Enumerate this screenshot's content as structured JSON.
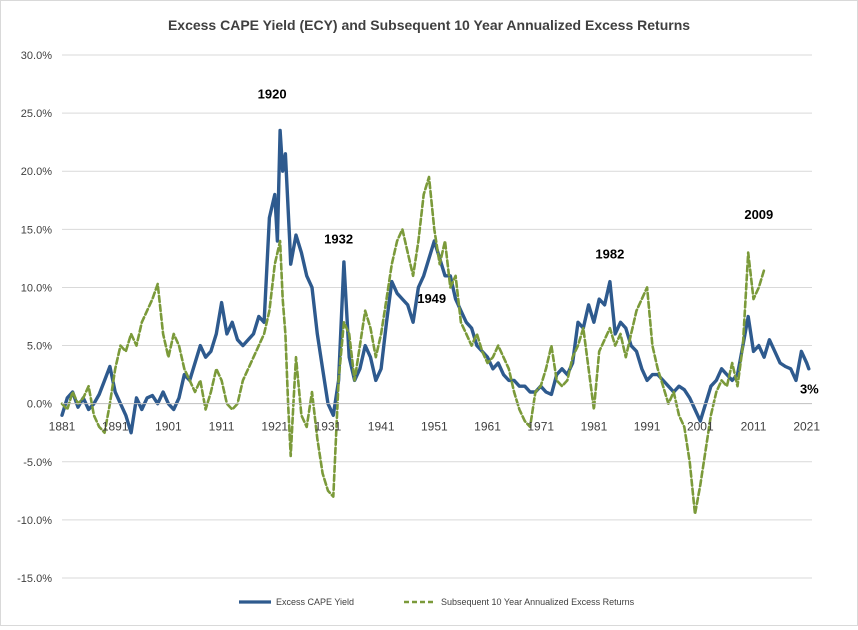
{
  "chart_data": {
    "type": "line",
    "title": "Excess CAPE Yield (ECY) and Subsequent 10 Year Annualized Excess Returns",
    "xlabel": "",
    "ylabel": "",
    "xlim": [
      1881,
      2022
    ],
    "ylim": [
      -15,
      30
    ],
    "x_ticks": [
      "1881",
      "1891",
      "1901",
      "1911",
      "1921",
      "1931",
      "1941",
      "1951",
      "1961",
      "1971",
      "1981",
      "1991",
      "2001",
      "2011",
      "2021"
    ],
    "y_ticks": [
      "30.0%",
      "25.0%",
      "20.0%",
      "15.0%",
      "10.0%",
      "5.0%",
      "0.0%",
      "-5.0%",
      "-10.0%",
      "-15.0%"
    ],
    "grid": "horizontal",
    "legend": "bottom",
    "series": [
      {
        "name": "Excess CAPE Yield",
        "color": "#2e5a8e",
        "style": "solid",
        "points": [
          [
            1881,
            -1
          ],
          [
            1882,
            0.5
          ],
          [
            1883,
            1
          ],
          [
            1884,
            -0.3
          ],
          [
            1885,
            0.5
          ],
          [
            1886,
            -0.5
          ],
          [
            1887,
            0
          ],
          [
            1888,
            0.8
          ],
          [
            1889,
            2
          ],
          [
            1890,
            3.2
          ],
          [
            1891,
            1
          ],
          [
            1892,
            0
          ],
          [
            1893,
            -1
          ],
          [
            1894,
            -2.5
          ],
          [
            1895,
            0.5
          ],
          [
            1896,
            -0.5
          ],
          [
            1897,
            0.5
          ],
          [
            1898,
            0.7
          ],
          [
            1899,
            0
          ],
          [
            1900,
            1
          ],
          [
            1901,
            0
          ],
          [
            1902,
            -0.5
          ],
          [
            1903,
            0.5
          ],
          [
            1904,
            2.5
          ],
          [
            1905,
            2
          ],
          [
            1906,
            3.5
          ],
          [
            1907,
            5
          ],
          [
            1908,
            4
          ],
          [
            1909,
            4.5
          ],
          [
            1910,
            6
          ],
          [
            1911,
            8.7
          ],
          [
            1912,
            6
          ],
          [
            1913,
            7
          ],
          [
            1914,
            5.5
          ],
          [
            1915,
            5
          ],
          [
            1916,
            5.5
          ],
          [
            1917,
            6
          ],
          [
            1918,
            7.5
          ],
          [
            1919,
            7
          ],
          [
            1920,
            16
          ],
          [
            1921,
            18
          ],
          [
            1921.5,
            14
          ],
          [
            1922,
            23.5
          ],
          [
            1922.5,
            20
          ],
          [
            1923,
            21.5
          ],
          [
            1923.8,
            14
          ],
          [
            1924,
            12
          ],
          [
            1925,
            14.5
          ],
          [
            1926,
            13
          ],
          [
            1927,
            11
          ],
          [
            1928,
            10
          ],
          [
            1929,
            6
          ],
          [
            1930,
            3
          ],
          [
            1931,
            0
          ],
          [
            1932,
            -1
          ],
          [
            1933,
            2
          ],
          [
            1934,
            12.2
          ],
          [
            1934.5,
            8
          ],
          [
            1935,
            4
          ],
          [
            1936,
            2
          ],
          [
            1937,
            3
          ],
          [
            1938,
            5
          ],
          [
            1939,
            4
          ],
          [
            1940,
            2
          ],
          [
            1941,
            3
          ],
          [
            1942,
            7
          ],
          [
            1943,
            10.5
          ],
          [
            1944,
            9.5
          ],
          [
            1945,
            9
          ],
          [
            1946,
            8.5
          ],
          [
            1947,
            7
          ],
          [
            1948,
            10
          ],
          [
            1949,
            11
          ],
          [
            1950,
            12.5
          ],
          [
            1951,
            14
          ],
          [
            1952,
            12.5
          ],
          [
            1953,
            11
          ],
          [
            1954,
            11
          ],
          [
            1955,
            9
          ],
          [
            1956,
            8
          ],
          [
            1957,
            7
          ],
          [
            1958,
            6.5
          ],
          [
            1959,
            5
          ],
          [
            1960,
            4.5
          ],
          [
            1961,
            4
          ],
          [
            1962,
            3
          ],
          [
            1963,
            3.5
          ],
          [
            1964,
            2.5
          ],
          [
            1965,
            2
          ],
          [
            1966,
            2
          ],
          [
            1967,
            1.5
          ],
          [
            1968,
            1.5
          ],
          [
            1969,
            1
          ],
          [
            1970,
            1
          ],
          [
            1971,
            1.5
          ],
          [
            1972,
            1
          ],
          [
            1973,
            0.8
          ],
          [
            1974,
            2.5
          ],
          [
            1975,
            3
          ],
          [
            1976,
            2.5
          ],
          [
            1977,
            3.5
          ],
          [
            1978,
            7
          ],
          [
            1979,
            6.5
          ],
          [
            1980,
            8.5
          ],
          [
            1981,
            7
          ],
          [
            1982,
            9
          ],
          [
            1983,
            8.5
          ],
          [
            1984,
            10.5
          ],
          [
            1985,
            6
          ],
          [
            1986,
            7
          ],
          [
            1987,
            6.5
          ],
          [
            1988,
            5
          ],
          [
            1989,
            4.5
          ],
          [
            1990,
            3
          ],
          [
            1991,
            2
          ],
          [
            1992,
            2.5
          ],
          [
            1993,
            2.5
          ],
          [
            1994,
            2
          ],
          [
            1995,
            1.5
          ],
          [
            1996,
            1
          ],
          [
            1997,
            1.5
          ],
          [
            1998,
            1.2
          ],
          [
            1999,
            0.5
          ],
          [
            2000,
            -0.5
          ],
          [
            2001,
            -1.5
          ],
          [
            2002,
            0
          ],
          [
            2003,
            1.5
          ],
          [
            2004,
            2
          ],
          [
            2005,
            3
          ],
          [
            2006,
            2.5
          ],
          [
            2007,
            2
          ],
          [
            2008,
            2.5
          ],
          [
            2009,
            5
          ],
          [
            2010,
            7.5
          ],
          [
            2011,
            4.5
          ],
          [
            2012,
            5
          ],
          [
            2013,
            4
          ],
          [
            2014,
            5.5
          ],
          [
            2015,
            4.5
          ],
          [
            2016,
            3.5
          ],
          [
            2017,
            3.2
          ],
          [
            2018,
            3
          ],
          [
            2019,
            2
          ],
          [
            2020,
            4.5
          ],
          [
            2021,
            3.5
          ],
          [
            2021.4,
            3
          ]
        ]
      },
      {
        "name": "Subsequent 10 Year Annualized Excess Returns",
        "color": "#7b9a3a",
        "style": "dashed",
        "points": [
          [
            1881,
            0
          ],
          [
            1882,
            -0.5
          ],
          [
            1883,
            1
          ],
          [
            1884,
            0
          ],
          [
            1885,
            0.5
          ],
          [
            1886,
            1.5
          ],
          [
            1887,
            -1
          ],
          [
            1888,
            -2
          ],
          [
            1889,
            -2.5
          ],
          [
            1890,
            0
          ],
          [
            1891,
            3
          ],
          [
            1892,
            5
          ],
          [
            1893,
            4.5
          ],
          [
            1894,
            6
          ],
          [
            1895,
            5
          ],
          [
            1896,
            7
          ],
          [
            1897,
            8
          ],
          [
            1898,
            9
          ],
          [
            1899,
            10.3
          ],
          [
            1900,
            6
          ],
          [
            1901,
            4
          ],
          [
            1902,
            6
          ],
          [
            1903,
            5
          ],
          [
            1904,
            3
          ],
          [
            1905,
            2
          ],
          [
            1906,
            1
          ],
          [
            1907,
            2
          ],
          [
            1908,
            -0.5
          ],
          [
            1909,
            1
          ],
          [
            1910,
            3
          ],
          [
            1911,
            2
          ],
          [
            1912,
            0
          ],
          [
            1913,
            -0.5
          ],
          [
            1914,
            0
          ],
          [
            1915,
            2
          ],
          [
            1916,
            3
          ],
          [
            1917,
            4
          ],
          [
            1918,
            5
          ],
          [
            1919,
            6
          ],
          [
            1920,
            8
          ],
          [
            1921,
            12
          ],
          [
            1922,
            14
          ],
          [
            1922.5,
            9
          ],
          [
            1923,
            6
          ],
          [
            1923.5,
            0
          ],
          [
            1924,
            -4.5
          ],
          [
            1924.5,
            0
          ],
          [
            1925,
            4
          ],
          [
            1926,
            -1
          ],
          [
            1927,
            -2
          ],
          [
            1928,
            1
          ],
          [
            1929,
            -3
          ],
          [
            1930,
            -6
          ],
          [
            1931,
            -7.5
          ],
          [
            1932,
            -8
          ],
          [
            1933,
            2
          ],
          [
            1934,
            7
          ],
          [
            1935,
            6
          ],
          [
            1936,
            2
          ],
          [
            1937,
            5
          ],
          [
            1938,
            8
          ],
          [
            1939,
            6.5
          ],
          [
            1940,
            4
          ],
          [
            1941,
            6
          ],
          [
            1942,
            9
          ],
          [
            1943,
            12
          ],
          [
            1944,
            14
          ],
          [
            1945,
            15
          ],
          [
            1946,
            13
          ],
          [
            1947,
            11
          ],
          [
            1948,
            14
          ],
          [
            1949,
            18
          ],
          [
            1950,
            19.5
          ],
          [
            1951,
            15
          ],
          [
            1952,
            12
          ],
          [
            1953,
            14
          ],
          [
            1954,
            10
          ],
          [
            1955,
            11
          ],
          [
            1956,
            7
          ],
          [
            1957,
            6
          ],
          [
            1958,
            5
          ],
          [
            1959,
            6
          ],
          [
            1960,
            4.5
          ],
          [
            1961,
            3.5
          ],
          [
            1962,
            4
          ],
          [
            1963,
            5
          ],
          [
            1964,
            4
          ],
          [
            1965,
            3
          ],
          [
            1966,
            1
          ],
          [
            1967,
            -0.5
          ],
          [
            1968,
            -1.5
          ],
          [
            1969,
            -2
          ],
          [
            1970,
            1
          ],
          [
            1971,
            1.5
          ],
          [
            1972,
            3
          ],
          [
            1973,
            5
          ],
          [
            1974,
            2
          ],
          [
            1975,
            1.5
          ],
          [
            1976,
            2
          ],
          [
            1977,
            4
          ],
          [
            1978,
            5
          ],
          [
            1979,
            6.5
          ],
          [
            1980,
            3
          ],
          [
            1981,
            -0.5
          ],
          [
            1982,
            4.5
          ],
          [
            1983,
            5.5
          ],
          [
            1984,
            6.5
          ],
          [
            1985,
            5
          ],
          [
            1986,
            6
          ],
          [
            1987,
            4
          ],
          [
            1988,
            6
          ],
          [
            1989,
            8
          ],
          [
            1990,
            9
          ],
          [
            1991,
            10
          ],
          [
            1992,
            5
          ],
          [
            1993,
            3
          ],
          [
            1994,
            1.5
          ],
          [
            1995,
            0
          ],
          [
            1996,
            1
          ],
          [
            1997,
            -1
          ],
          [
            1998,
            -2
          ],
          [
            1999,
            -5
          ],
          [
            2000,
            -9.5
          ],
          [
            2001,
            -7
          ],
          [
            2002,
            -4
          ],
          [
            2003,
            -1
          ],
          [
            2004,
            1
          ],
          [
            2005,
            2
          ],
          [
            2006,
            1.5
          ],
          [
            2007,
            3.5
          ],
          [
            2008,
            1.5
          ],
          [
            2009,
            5
          ],
          [
            2010,
            13
          ],
          [
            2011,
            9
          ],
          [
            2012,
            10
          ],
          [
            2013,
            11.5
          ]
        ]
      }
    ],
    "annotations": [
      {
        "text": "1920",
        "x": 1920.5,
        "y": 26.7
      },
      {
        "text": "1932",
        "x": 1933,
        "y": 14.2
      },
      {
        "text": "1949",
        "x": 1950.5,
        "y": 9.1
      },
      {
        "text": "1982",
        "x": 1984,
        "y": 12.9
      },
      {
        "text": "2009",
        "x": 2012,
        "y": 16.3
      },
      {
        "text": "3%",
        "x": 2021.5,
        "y": 1.3
      }
    ]
  }
}
